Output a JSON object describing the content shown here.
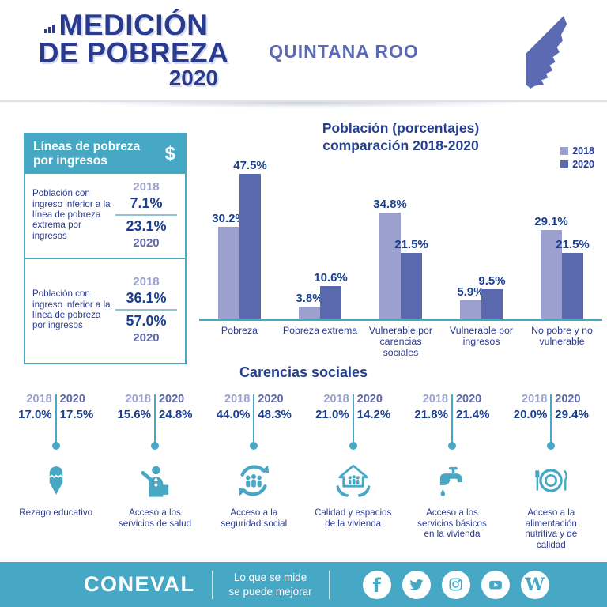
{
  "colors": {
    "teal": "#47A8C6",
    "navy_logo": "#2A3B8F",
    "navy_title": "#24408F",
    "navy_value": "#1B3F8F",
    "purple_2018": "#9CA0CE",
    "purple_2020": "#5F65A8",
    "state_purple": "#5C6AB4",
    "bar_2018": "#9CA0CE",
    "bar_2020": "#5A68AE"
  },
  "header": {
    "logo_line1": "MEDICIÓN",
    "logo_line2": "DE POBREZA",
    "logo_year": "2020",
    "state_name": "QUINTANA ROO"
  },
  "income_box": {
    "title": "Líneas de pobreza por ingresos",
    "currency_symbol": "$",
    "rows": [
      {
        "label": "Población con ingreso inferior a la línea de pobreza extrema por ingresos",
        "year_top": "2018",
        "value_top": "7.1%",
        "value_bottom": "23.1%",
        "year_bottom": "2020"
      },
      {
        "label": "Población con ingreso inferior a la línea de pobreza por ingresos",
        "year_top": "2018",
        "value_top": "36.1%",
        "value_bottom": "57.0%",
        "year_bottom": "2020"
      }
    ]
  },
  "chart_data": {
    "type": "bar",
    "title_line1": "Población (porcentajes)",
    "title_line2": "comparación 2018-2020",
    "categories": [
      "Pobreza",
      "Pobreza extrema",
      "Vulnerable por carencias sociales",
      "Vulnerable por ingresos",
      "No pobre y no vulnerable"
    ],
    "series": [
      {
        "name": "2018",
        "color": "#9CA0CE",
        "values": [
          30.2,
          3.8,
          34.8,
          5.9,
          29.1
        ],
        "display": [
          "30.2%",
          "3.8%",
          "34.8%",
          "5.9%",
          "29.1%"
        ]
      },
      {
        "name": "2020",
        "color": "#5A68AE",
        "values": [
          47.5,
          10.6,
          21.5,
          9.5,
          21.5
        ],
        "display": [
          "47.5%",
          "10.6%",
          "21.5%",
          "9.5%",
          "21.5%"
        ]
      }
    ],
    "ylim": [
      0,
      50
    ],
    "grid": false,
    "legend_position": "top-right",
    "axis_color": "#47A8C6"
  },
  "carencias": {
    "title": "Carencias sociales",
    "year_left": "2018",
    "year_right": "2020",
    "items": [
      {
        "icon": "pencil-icon",
        "label": "Rezago educativo",
        "v2018": "17.0%",
        "v2020": "17.5%"
      },
      {
        "icon": "health-icon",
        "label": "Acceso a los servicios de salud",
        "v2018": "15.6%",
        "v2020": "24.8%"
      },
      {
        "icon": "social-security-icon",
        "label": "Acceso a la seguridad social",
        "v2018": "44.0%",
        "v2020": "48.3%"
      },
      {
        "icon": "house-hands-icon",
        "label": "Calidad y espacios de la vivienda",
        "v2018": "21.0%",
        "v2020": "14.2%"
      },
      {
        "icon": "faucet-icon",
        "label": "Acceso a los servicios básicos en la vivienda",
        "v2018": "21.8%",
        "v2020": "21.4%"
      },
      {
        "icon": "plate-icon",
        "label": "Acceso a la alimentación nutritiva y de calidad",
        "v2018": "20.0%",
        "v2020": "29.4%"
      }
    ]
  },
  "footer": {
    "brand": "CONEVAL",
    "slogan_line1": "Lo que se mide",
    "slogan_line2": "se puede mejorar",
    "social": [
      "facebook",
      "twitter",
      "instagram",
      "youtube",
      "w"
    ]
  }
}
